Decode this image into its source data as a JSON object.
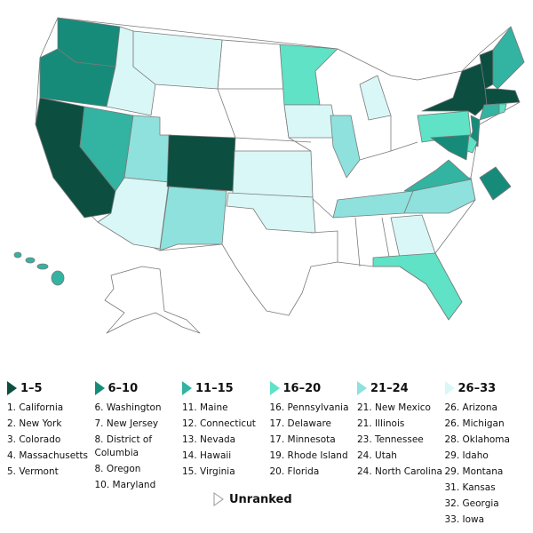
{
  "legend": {
    "groups": [
      {
        "label": "1–5",
        "color": "#0c4f41",
        "items": [
          "1. California",
          "2. New York",
          "3. Colorado",
          "4. Massachusetts",
          "5. Vermont"
        ]
      },
      {
        "label": "6–10",
        "color": "#178b79",
        "items": [
          "6. Washington",
          "7. New Jersey",
          "8. District of Columbia",
          "8. Oregon",
          "10. Maryland"
        ]
      },
      {
        "label": "11–15",
        "color": "#33b3a1",
        "items": [
          "11. Maine",
          "12. Connecticut",
          "13. Nevada",
          "14. Hawaii",
          "15. Virginia"
        ]
      },
      {
        "label": "16–20",
        "color": "#5fe2c6",
        "items": [
          "16. Pennsylvania",
          "17. Delaware",
          "17. Minnesota",
          "19. Rhode Island",
          "20. Florida"
        ]
      },
      {
        "label": "21–24",
        "color": "#8fe1dd",
        "items": [
          "21. New Mexico",
          "21. Illinois",
          "23. Tennessee",
          "24. Utah",
          "24. North Carolina"
        ]
      },
      {
        "label": "26–33",
        "color": "#d9f7f7",
        "items": [
          "26. Arizona",
          "26. Michigan",
          "28. Oklahoma",
          "29. Idaho",
          "29. Montana",
          "31. Kansas",
          "32. Georgia",
          "33. Iowa"
        ]
      }
    ],
    "unranked": "Unranked"
  }
}
